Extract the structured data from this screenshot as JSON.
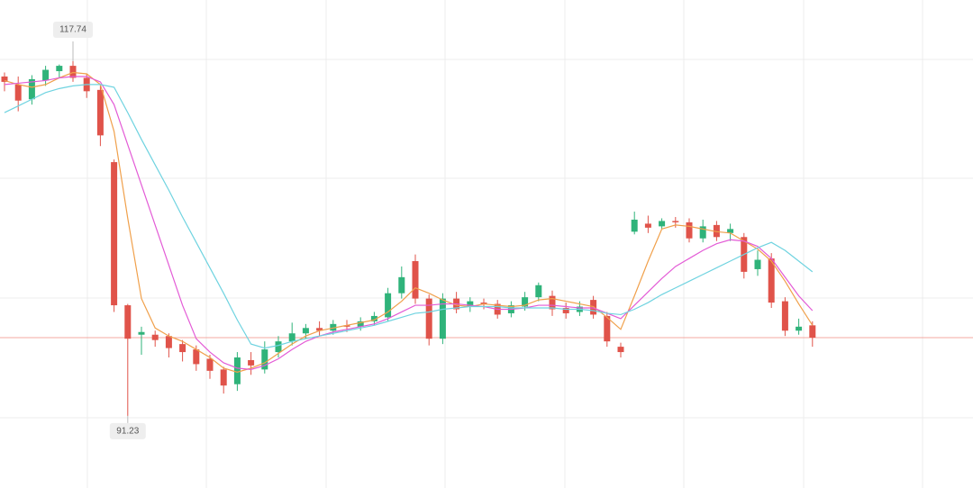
{
  "chart_data": {
    "type": "candlestick",
    "ylim": [
      85.84,
      122.32
    ],
    "up_color": "#2fb37a",
    "down_color": "#e0534a",
    "open": [
      116.6,
      116.0,
      114.9,
      116.3,
      117.0,
      117.4,
      116.5,
      115.6,
      110.2,
      99.5,
      97.3,
      97.3,
      97.2,
      96.6,
      96.2,
      95.5,
      94.7,
      93.6,
      95.4,
      94.7,
      96.0,
      96.8,
      97.4,
      97.8,
      97.6,
      98.0,
      97.9,
      98.3,
      98.6,
      100.4,
      102.8,
      100.0,
      97.0,
      100.0,
      99.4,
      99.7,
      99.6,
      98.9,
      99.4,
      100.1,
      100.2,
      99.3,
      99.0,
      99.9,
      98.7,
      96.4,
      105.0,
      105.6,
      105.4,
      105.8,
      105.7,
      104.5,
      105.5,
      104.9,
      104.6,
      102.2,
      103.0,
      99.8,
      97.6,
      98.0
    ],
    "high": [
      116.9,
      116.6,
      116.7,
      117.4,
      117.5,
      117.74,
      116.8,
      116.0,
      110.4,
      99.6,
      97.9,
      97.6,
      97.4,
      96.9,
      96.5,
      95.8,
      94.9,
      96.0,
      96.0,
      96.8,
      97.2,
      98.2,
      98.1,
      98.3,
      98.4,
      98.4,
      98.6,
      99.0,
      100.8,
      102.4,
      103.3,
      100.3,
      100.4,
      100.5,
      100.1,
      100.0,
      99.9,
      99.8,
      100.5,
      101.2,
      100.6,
      99.7,
      99.8,
      100.2,
      99.0,
      96.7,
      106.5,
      106.2,
      106.0,
      106.1,
      106.0,
      105.9,
      105.8,
      105.6,
      104.9,
      103.6,
      103.4,
      100.1,
      98.5,
      98.3
    ],
    "low": [
      115.5,
      114.0,
      114.5,
      115.9,
      116.5,
      116.2,
      115.0,
      111.4,
      99.0,
      91.23,
      95.8,
      96.4,
      95.6,
      95.3,
      94.6,
      94.0,
      92.9,
      93.1,
      94.3,
      94.4,
      95.6,
      96.5,
      97.0,
      97.2,
      97.3,
      97.5,
      97.6,
      98.0,
      98.3,
      100.0,
      99.6,
      96.5,
      96.6,
      98.9,
      99.0,
      99.2,
      98.5,
      98.6,
      99.1,
      99.8,
      98.7,
      98.5,
      98.7,
      98.5,
      96.4,
      95.6,
      104.8,
      104.9,
      105.2,
      105.3,
      104.2,
      104.2,
      104.3,
      104.3,
      101.5,
      101.7,
      99.3,
      97.2,
      97.3,
      96.4
    ],
    "close": [
      116.2,
      114.8,
      116.4,
      117.1,
      117.4,
      116.5,
      115.5,
      112.2,
      99.5,
      97.0,
      97.5,
      96.9,
      96.3,
      96.0,
      95.1,
      94.6,
      93.5,
      95.6,
      95.0,
      96.2,
      96.8,
      97.4,
      97.8,
      97.6,
      98.1,
      97.9,
      98.3,
      98.7,
      100.4,
      101.6,
      100.0,
      97.0,
      100.0,
      99.2,
      99.8,
      99.6,
      98.8,
      99.5,
      100.1,
      101.0,
      99.2,
      98.9,
      99.4,
      98.8,
      96.8,
      96.0,
      105.9,
      105.3,
      105.8,
      105.7,
      104.5,
      105.4,
      104.6,
      105.2,
      102.0,
      102.9,
      99.7,
      97.6,
      97.9,
      97.08
    ],
    "series": [
      {
        "color": "#f0a04b",
        "values": [
          116.3,
          116.0,
          115.8,
          116.0,
          116.5,
          116.9,
          116.8,
          116.0,
          112.5,
          106.0,
          100.0,
          97.8,
          97.2,
          96.8,
          96.2,
          95.6,
          94.8,
          94.5,
          94.8,
          95.2,
          95.9,
          96.6,
          97.2,
          97.6,
          97.8,
          98.0,
          98.2,
          98.4,
          99.0,
          99.8,
          100.8,
          100.4,
          99.9,
          99.5,
          99.4,
          99.6,
          99.5,
          99.4,
          99.5,
          99.9,
          100.0,
          99.8,
          99.6,
          99.4,
          98.6,
          97.7,
          100.2,
          102.8,
          105.2,
          105.5,
          105.4,
          105.2,
          105.0,
          104.9,
          104.3,
          103.7,
          102.8,
          101.3,
          99.6,
          98.0
        ]
      },
      {
        "color": "#e35bd6",
        "values": [
          116.0,
          116.1,
          116.2,
          116.3,
          116.5,
          116.6,
          116.6,
          116.2,
          114.5,
          111.5,
          108.5,
          105.5,
          102.5,
          99.5,
          97.0,
          96.0,
          95.2,
          94.8,
          94.7,
          95.0,
          95.5,
          96.2,
          96.8,
          97.2,
          97.5,
          97.7,
          97.9,
          98.1,
          98.5,
          99.0,
          99.5,
          99.5,
          99.6,
          99.6,
          99.5,
          99.4,
          99.2,
          99.2,
          99.3,
          99.5,
          99.5,
          99.4,
          99.3,
          99.3,
          98.9,
          98.5,
          99.5,
          100.5,
          101.5,
          102.4,
          103.0,
          103.6,
          104.1,
          104.4,
          104.3,
          103.9,
          103.0,
          101.6,
          100.2,
          99.1
        ]
      },
      {
        "color": "#6fd3e0",
        "values": [
          113.9,
          114.4,
          114.9,
          115.4,
          115.7,
          115.9,
          116.0,
          116.0,
          115.8,
          113.9,
          111.9,
          110.0,
          108.1,
          106.1,
          104.2,
          102.3,
          100.4,
          98.4,
          96.6,
          96.3,
          96.5,
          96.8,
          97.0,
          97.2,
          97.4,
          97.6,
          97.8,
          98.0,
          98.3,
          98.6,
          98.9,
          99.0,
          99.2,
          99.3,
          99.4,
          99.4,
          99.4,
          99.3,
          99.3,
          99.3,
          99.3,
          99.2,
          99.2,
          99.1,
          98.9,
          98.8,
          99.2,
          99.7,
          100.3,
          100.8,
          101.3,
          101.8,
          102.3,
          102.8,
          103.3,
          103.8,
          104.2,
          103.6,
          102.8,
          102.0
        ]
      }
    ],
    "last_price_color": "#f4a8a0"
  }
}
